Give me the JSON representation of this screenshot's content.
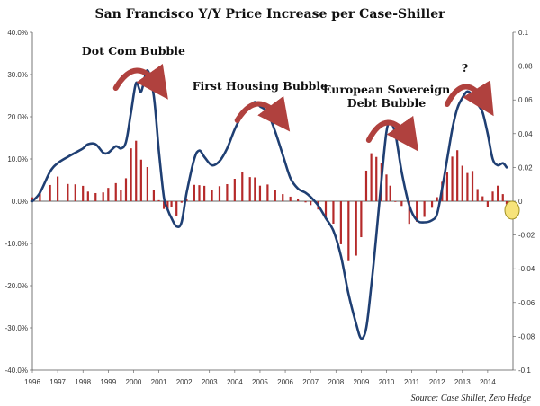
{
  "chart_data": {
    "type": "bar+line",
    "title": "San Francisco Y/Y Price Increase per Case-Shiller",
    "source": "Source: Case Shiller, Zero Hedge",
    "x_ticks": [
      "1996",
      "1997",
      "1998",
      "1999",
      "2000",
      "2001",
      "2002",
      "2003",
      "2004",
      "2005",
      "2006",
      "2007",
      "2008",
      "2009",
      "2010",
      "2011",
      "2012",
      "2013",
      "2014"
    ],
    "y_left": {
      "ticks": [
        "40.0%",
        "30.0%",
        "20.0%",
        "10.0%",
        "0.0%",
        "-10.0%",
        "-20.0%",
        "-30.0%",
        "-40.0%"
      ],
      "range": [
        -0.4,
        0.4
      ]
    },
    "y_right": {
      "ticks": [
        "0.1",
        "0.08",
        "0.06",
        "0.04",
        "0.02",
        "0",
        "-0.02",
        "-0.04",
        "-0.06",
        "-0.08",
        "-0.1"
      ],
      "range": [
        -0.1,
        0.1
      ]
    },
    "annotations": [
      {
        "text": "Dot Com Bubble",
        "year": 2000.0
      },
      {
        "text": "First Housing Bubble",
        "year": 2005.0
      },
      {
        "text": "European Sovereign",
        "year": 2010.0
      },
      {
        "text": "Debt Bubble",
        "year": 2010.0
      },
      {
        "text": "?",
        "year": 2013.1
      }
    ],
    "series": [
      {
        "axis": "left",
        "style": "line",
        "color": "#1f3f73",
        "points": [
          [
            1996.0,
            0.0
          ],
          [
            1996.3,
            0.02
          ],
          [
            1996.7,
            0.07
          ],
          [
            1997.0,
            0.09
          ],
          [
            1997.4,
            0.105
          ],
          [
            1997.7,
            0.115
          ],
          [
            1998.0,
            0.125
          ],
          [
            1998.2,
            0.135
          ],
          [
            1998.5,
            0.135
          ],
          [
            1998.8,
            0.115
          ],
          [
            1999.0,
            0.115
          ],
          [
            1999.3,
            0.13
          ],
          [
            1999.5,
            0.125
          ],
          [
            1999.7,
            0.14
          ],
          [
            1999.9,
            0.21
          ],
          [
            2000.1,
            0.28
          ],
          [
            2000.3,
            0.26
          ],
          [
            2000.55,
            0.31
          ],
          [
            2000.8,
            0.25
          ],
          [
            2001.0,
            0.12
          ],
          [
            2001.2,
            0.01
          ],
          [
            2001.35,
            -0.02
          ],
          [
            2001.5,
            -0.04
          ],
          [
            2001.7,
            -0.06
          ],
          [
            2001.9,
            -0.05
          ],
          [
            2002.1,
            0.02
          ],
          [
            2002.4,
            0.1
          ],
          [
            2002.6,
            0.12
          ],
          [
            2002.8,
            0.105
          ],
          [
            2003.1,
            0.085
          ],
          [
            2003.4,
            0.095
          ],
          [
            2003.7,
            0.125
          ],
          [
            2004.0,
            0.17
          ],
          [
            2004.3,
            0.205
          ],
          [
            2004.6,
            0.225
          ],
          [
            2004.8,
            0.235
          ],
          [
            2005.0,
            0.225
          ],
          [
            2005.3,
            0.21
          ],
          [
            2005.6,
            0.165
          ],
          [
            2005.9,
            0.11
          ],
          [
            2006.2,
            0.055
          ],
          [
            2006.5,
            0.03
          ],
          [
            2006.8,
            0.02
          ],
          [
            2007.0,
            0.01
          ],
          [
            2007.3,
            -0.01
          ],
          [
            2007.6,
            -0.04
          ],
          [
            2007.9,
            -0.07
          ],
          [
            2008.2,
            -0.13
          ],
          [
            2008.5,
            -0.22
          ],
          [
            2008.8,
            -0.29
          ],
          [
            2009.0,
            -0.325
          ],
          [
            2009.2,
            -0.3
          ],
          [
            2009.4,
            -0.2
          ],
          [
            2009.6,
            -0.08
          ],
          [
            2009.8,
            0.05
          ],
          [
            2010.0,
            0.165
          ],
          [
            2010.15,
            0.185
          ],
          [
            2010.35,
            0.16
          ],
          [
            2010.6,
            0.07
          ],
          [
            2010.9,
            -0.01
          ],
          [
            2011.2,
            -0.045
          ],
          [
            2011.5,
            -0.05
          ],
          [
            2011.8,
            -0.045
          ],
          [
            2012.0,
            -0.03
          ],
          [
            2012.2,
            0.03
          ],
          [
            2012.4,
            0.1
          ],
          [
            2012.6,
            0.17
          ],
          [
            2012.8,
            0.22
          ],
          [
            2013.0,
            0.245
          ],
          [
            2013.2,
            0.26
          ],
          [
            2013.4,
            0.25
          ],
          [
            2013.6,
            0.23
          ],
          [
            2013.8,
            0.21
          ],
          [
            2014.0,
            0.16
          ],
          [
            2014.2,
            0.1
          ],
          [
            2014.4,
            0.085
          ],
          [
            2014.6,
            0.09
          ],
          [
            2014.75,
            0.08
          ]
        ]
      },
      {
        "axis": "right",
        "style": "bar",
        "color": "#b52a2a",
        "points": [
          [
            1996.0,
            0.0023
          ],
          [
            1996.3,
            0.0061
          ],
          [
            1996.7,
            0.0096
          ],
          [
            1997.0,
            0.0146
          ],
          [
            1997.4,
            0.0102
          ],
          [
            1997.7,
            0.01
          ],
          [
            1998.0,
            0.0091
          ],
          [
            1998.2,
            0.0057
          ],
          [
            1998.5,
            0.0048
          ],
          [
            1998.8,
            0.0052
          ],
          [
            1999.0,
            0.0079
          ],
          [
            1999.3,
            0.0107
          ],
          [
            1999.5,
            0.0064
          ],
          [
            1999.7,
            0.0136
          ],
          [
            1999.9,
            0.0313
          ],
          [
            2000.1,
            0.0358
          ],
          [
            2000.3,
            0.0246
          ],
          [
            2000.55,
            0.0202
          ],
          [
            2000.8,
            0.0065
          ],
          [
            2001.0,
            0.0006
          ],
          [
            2001.2,
            -0.0046
          ],
          [
            2001.35,
            -0.0045
          ],
          [
            2001.5,
            -0.0035
          ],
          [
            2001.7,
            -0.0085
          ],
          [
            2001.9,
            -0.0009
          ],
          [
            2002.1,
            0.0016
          ],
          [
            2002.4,
            0.0097
          ],
          [
            2002.6,
            0.0095
          ],
          [
            2002.8,
            0.0091
          ],
          [
            2003.1,
            0.0064
          ],
          [
            2003.4,
            0.0089
          ],
          [
            2003.7,
            0.0101
          ],
          [
            2004.0,
            0.0133
          ],
          [
            2004.3,
            0.0172
          ],
          [
            2004.6,
            0.0143
          ],
          [
            2004.8,
            0.0141
          ],
          [
            2005.0,
            0.0092
          ],
          [
            2005.3,
            0.0099
          ],
          [
            2005.6,
            0.0064
          ],
          [
            2005.9,
            0.0042
          ],
          [
            2006.2,
            0.0027
          ],
          [
            2006.5,
            0.0016
          ],
          [
            2006.8,
            -0.0007
          ],
          [
            2007.0,
            -0.0023
          ],
          [
            2007.3,
            -0.0049
          ],
          [
            2007.6,
            -0.0097
          ],
          [
            2007.9,
            -0.0133
          ],
          [
            2008.2,
            -0.0255
          ],
          [
            2008.5,
            -0.0355
          ],
          [
            2008.8,
            -0.0322
          ],
          [
            2009.0,
            -0.0213
          ],
          [
            2009.2,
            0.0181
          ],
          [
            2009.4,
            0.0284
          ],
          [
            2009.6,
            0.0262
          ],
          [
            2009.8,
            0.0228
          ],
          [
            2010.0,
            0.0158
          ],
          [
            2010.15,
            0.0092
          ],
          [
            2010.35,
            -0.0001
          ],
          [
            2010.6,
            -0.0028
          ],
          [
            2010.9,
            -0.0134
          ],
          [
            2011.2,
            -0.0122
          ],
          [
            2011.5,
            -0.0093
          ],
          [
            2011.8,
            -0.0039
          ],
          [
            2012.0,
            0.0024
          ],
          [
            2012.2,
            0.0115
          ],
          [
            2012.4,
            0.017
          ],
          [
            2012.6,
            0.0264
          ],
          [
            2012.8,
            0.0302
          ],
          [
            2013.0,
            0.021
          ],
          [
            2013.2,
            0.0167
          ],
          [
            2013.4,
            0.0179
          ],
          [
            2013.6,
            0.0072
          ],
          [
            2013.8,
            0.0029
          ],
          [
            2014.0,
            -0.0033
          ],
          [
            2014.2,
            0.0057
          ],
          [
            2014.4,
            0.0092
          ],
          [
            2014.6,
            0.0042
          ],
          [
            2014.75,
            -0.0018
          ]
        ]
      }
    ]
  }
}
